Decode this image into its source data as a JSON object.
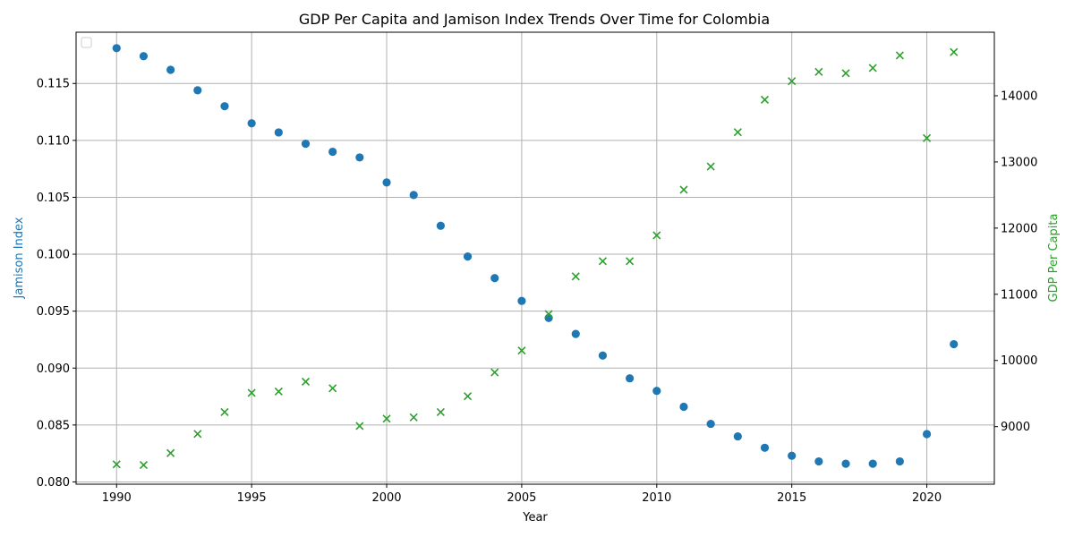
{
  "chart_data": {
    "type": "scatter",
    "title": "GDP Per Capita and Jamison Index Trends Over Time for Colombia",
    "xlabel": "Year",
    "ylabel_left": "Jamison Index",
    "ylabel_right": "GDP Per Capita",
    "xlim": [
      1988.5,
      2022.5
    ],
    "ylim_left": [
      0.0798,
      0.1195
    ],
    "ylim_right": [
      8130,
      14960
    ],
    "x_ticks": [
      1990,
      1995,
      2000,
      2005,
      2010,
      2015,
      2020
    ],
    "y_ticks_left": [
      "0.080",
      "0.085",
      "0.090",
      "0.095",
      "0.100",
      "0.105",
      "0.110",
      "0.115"
    ],
    "y_tick_values_left": [
      0.08,
      0.085,
      0.09,
      0.095,
      0.1,
      0.105,
      0.11,
      0.115
    ],
    "y_ticks_right": [
      "9000",
      "10000",
      "11000",
      "12000",
      "13000",
      "14000"
    ],
    "y_tick_values_right": [
      9000,
      10000,
      11000,
      12000,
      13000,
      14000
    ],
    "grid": true,
    "legend": "top-left (empty)",
    "colors": {
      "jamison": "#1f77b4",
      "gdp": "#2ca02c"
    },
    "x": [
      1990,
      1991,
      1992,
      1993,
      1994,
      1995,
      1996,
      1997,
      1998,
      1999,
      2000,
      2001,
      2002,
      2003,
      2004,
      2005,
      2006,
      2007,
      2008,
      2009,
      2010,
      2011,
      2012,
      2013,
      2014,
      2015,
      2016,
      2017,
      2018,
      2019,
      2020,
      2021
    ],
    "series": [
      {
        "axis": "left",
        "marker": "circle",
        "values": [
          0.1181,
          0.1174,
          0.1162,
          0.1144,
          0.113,
          0.1115,
          0.1107,
          0.1097,
          0.109,
          0.1085,
          0.1063,
          0.1052,
          0.1025,
          0.0998,
          0.0979,
          0.0959,
          0.0944,
          0.093,
          0.0911,
          0.0891,
          0.088,
          0.0866,
          0.0851,
          0.084,
          0.083,
          0.0823,
          0.0818,
          0.0816,
          0.0816,
          0.0818,
          0.0842,
          0.0921
        ]
      },
      {
        "axis": "right",
        "marker": "x",
        "values": [
          8430,
          8420,
          8600,
          8890,
          9220,
          9510,
          9530,
          9680,
          9580,
          9010,
          9120,
          9140,
          9220,
          9460,
          9820,
          10150,
          10700,
          11270,
          11500,
          11500,
          11890,
          12580,
          12930,
          13450,
          13940,
          14220,
          14360,
          14340,
          14420,
          14610,
          13360,
          14660
        ]
      }
    ]
  }
}
